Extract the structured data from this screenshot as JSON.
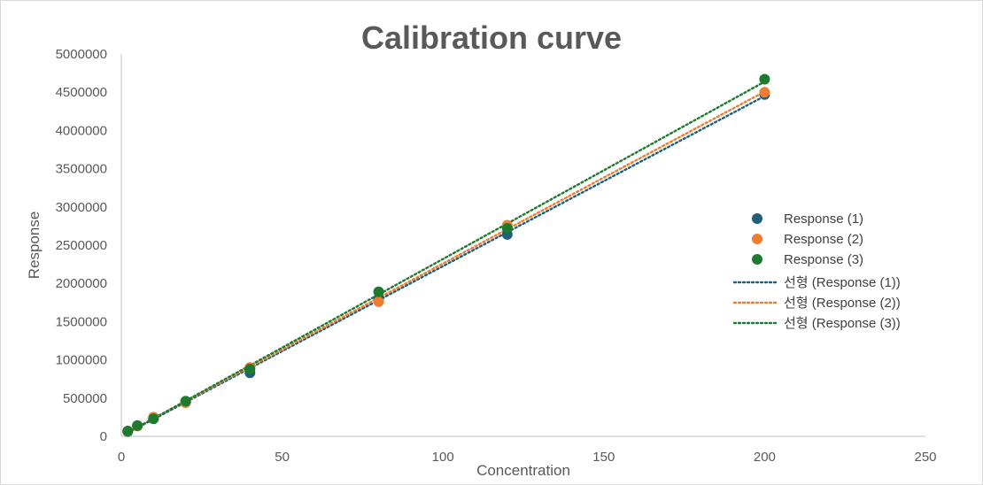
{
  "chart_data": {
    "type": "scatter",
    "title": "Calibration curve",
    "xlabel": "Concentration",
    "ylabel": "Response",
    "xlim": [
      0,
      250
    ],
    "ylim": [
      0,
      5000000
    ],
    "x_ticks": [
      "0",
      "50",
      "100",
      "150",
      "200",
      "250"
    ],
    "y_ticks": [
      "0",
      "500000",
      "1000000",
      "1500000",
      "2000000",
      "2500000",
      "3000000",
      "3500000",
      "4000000",
      "4500000",
      "5000000"
    ],
    "grid": false,
    "legend_position": "right",
    "x": [
      2,
      5,
      10,
      20,
      40,
      80,
      120,
      200
    ],
    "series": [
      {
        "name": "Response (1)",
        "color": "#1f5f7a",
        "values": [
          60000,
          140000,
          230000,
          450000,
          830000,
          1800000,
          2640000,
          4470000
        ]
      },
      {
        "name": "Response (2)",
        "color": "#ed7d31",
        "values": [
          65000,
          135000,
          250000,
          440000,
          900000,
          1760000,
          2760000,
          4500000
        ]
      },
      {
        "name": "Response (3)",
        "color": "#1e7a2e",
        "values": [
          70000,
          140000,
          230000,
          460000,
          880000,
          1890000,
          2720000,
          4670000
        ]
      }
    ],
    "trendlines": [
      {
        "name": "선형 (Response (1))",
        "color": "#1f5f7a",
        "series_index": 0
      },
      {
        "name": "선형 (Response (2))",
        "color": "#ed7d31",
        "series_index": 1
      },
      {
        "name": "선형 (Response (3))",
        "color": "#1e7a2e",
        "series_index": 2
      }
    ]
  }
}
